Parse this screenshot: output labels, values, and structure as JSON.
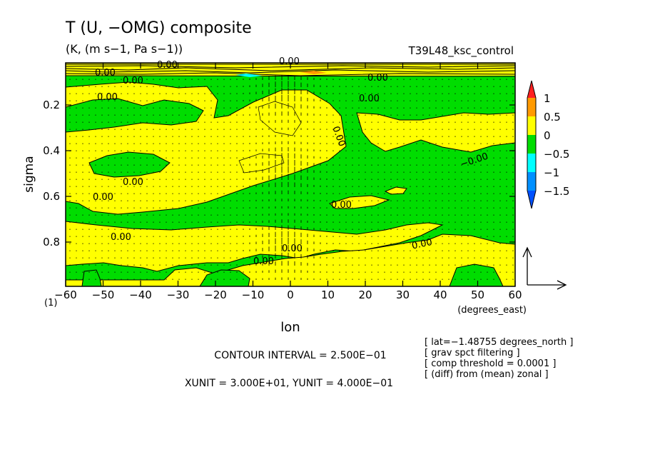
{
  "chart_data": {
    "type": "contour",
    "title": "T (U, −OMG) composite",
    "units": "(K, (m s−1, Pa s−1))",
    "experiment": "T39L48_ksc_control",
    "xlabel": "lon",
    "xunit_label": "(degrees_east)",
    "ylabel": "sigma",
    "xlim": [
      -60,
      60
    ],
    "ylim": [
      1.0,
      0.0
    ],
    "x_ticks": [
      "−60",
      "−50",
      "−40",
      "−30",
      "−20",
      "−10",
      "0",
      "10",
      "20",
      "30",
      "40",
      "50",
      "60"
    ],
    "y_ticks": [
      "0.2",
      "0.4",
      "0.6",
      "0.8"
    ],
    "page_marker": "(1)",
    "colorbar": {
      "labels": [
        "1",
        "0.5",
        "0",
        "−0.5",
        "−1",
        "−1.5"
      ],
      "colors": [
        "#ff2020",
        "#ff9a00",
        "#ffff00",
        "#00dd00",
        "#00ffff",
        "#0090ff",
        "#0050ff"
      ]
    },
    "fill_colors": {
      "positive": "#ffff00",
      "negative": "#00dd00"
    },
    "contour_labels": [
      "0.00",
      "0.00",
      "0.00",
      "0.00",
      "0.00",
      "0.00",
      "0.00",
      "0.00",
      "0.00",
      "0.00",
      "0.00",
      "0.00",
      "−0.00",
      "0.00",
      "0.00",
      "0.00"
    ],
    "contour_interval": "CONTOUR INTERVAL = 2.500E−01",
    "vector_units": "XUNIT = 3.000E+01, YUNIT = 4.000E−01",
    "notes": [
      "[ lat=−1.48755 degrees_north ]",
      "[ grav spct filtering ]",
      "[ comp threshold = 0.0001 ]",
      "[ (diff) from (mean) zonal ]"
    ]
  }
}
